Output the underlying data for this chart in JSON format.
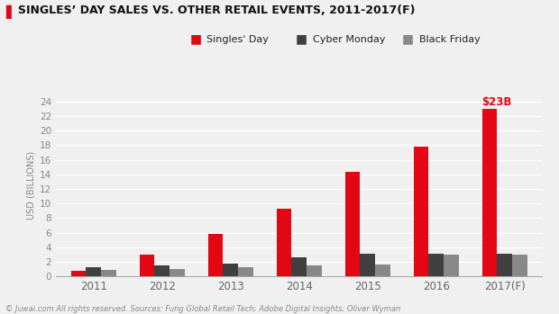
{
  "title": "SINGLES’ DAY SALES VS. OTHER RETAIL EVENTS, 2011-2017(F)",
  "title_color": "#111111",
  "title_bar_color": "#e30613",
  "ylabel": "USD (BILLIONS)",
  "categories": [
    "2011",
    "2012",
    "2013",
    "2014",
    "2015",
    "2016",
    "2017(F)"
  ],
  "singles_day": [
    0.8,
    3.0,
    5.8,
    9.3,
    14.3,
    17.8,
    23.0
  ],
  "cyber_monday": [
    1.25,
    1.46,
    1.74,
    2.65,
    3.07,
    3.07,
    3.07
  ],
  "black_friday": [
    0.82,
    1.04,
    1.2,
    1.5,
    1.66,
    2.92,
    2.92
  ],
  "singles_color": "#e30613",
  "cyber_color": "#404040",
  "black_color": "#888888",
  "annotation_text": "$23B",
  "annotation_color": "#e30613",
  "ylim": [
    0,
    25
  ],
  "yticks": [
    0,
    2,
    4,
    6,
    8,
    10,
    12,
    14,
    16,
    18,
    20,
    22,
    24
  ],
  "footnote": "© Juwai.com All rights reserved. Sources: Fung Global Retail Tech; Adobe Digital Insights; Oliver Wyman",
  "background_color": "#f0f0f0",
  "grid_color": "#ffffff"
}
